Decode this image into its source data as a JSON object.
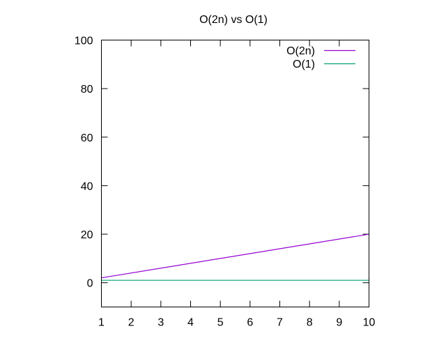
{
  "chart_data": {
    "type": "line",
    "title": "O(2n) vs O(1)",
    "xlabel": "",
    "ylabel": "",
    "xlim": [
      1,
      10
    ],
    "ylim": [
      -10,
      100
    ],
    "xticks": [
      "1",
      "2",
      "3",
      "4",
      "5",
      "6",
      "7",
      "8",
      "9",
      "10"
    ],
    "yticks": [
      "0",
      "20",
      "40",
      "60",
      "80",
      "100"
    ],
    "grid": false,
    "legend_position": "top-right",
    "series": [
      {
        "name": "O(2n)",
        "color": "#9400d3",
        "x": [
          1,
          10
        ],
        "y": [
          2,
          20
        ]
      },
      {
        "name": "O(1)",
        "color": "#009e73",
        "x": [
          1,
          10
        ],
        "y": [
          1,
          1
        ]
      }
    ]
  }
}
